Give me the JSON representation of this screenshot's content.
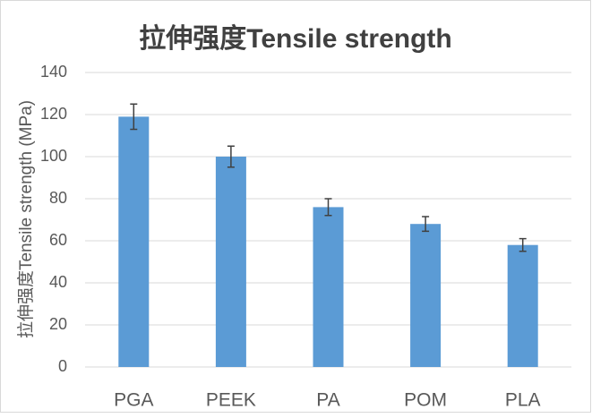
{
  "chart_data": {
    "type": "bar",
    "title": "拉伸强度Tensile strength",
    "y_label": "拉伸强度Tensile strength (MPa)",
    "categories": [
      "PGA",
      "PEEK",
      "PA",
      "POM",
      "PLA"
    ],
    "values": [
      119,
      100,
      76,
      68,
      58
    ],
    "errors": [
      6,
      5,
      4,
      3.5,
      3
    ],
    "color": "#5b9bd5",
    "ylim": [
      0,
      140
    ],
    "yticks": [
      0,
      20,
      40,
      60,
      80,
      100,
      120,
      140
    ],
    "grid": true
  }
}
